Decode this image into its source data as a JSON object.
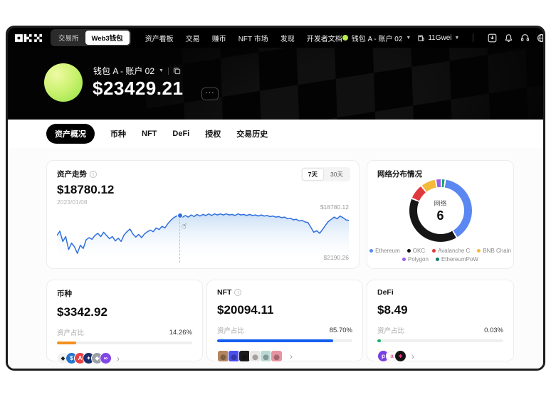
{
  "navbar": {
    "logo": "OKX",
    "segmented": {
      "exchange": "交易所",
      "web3": "Web3钱包"
    },
    "items": [
      "资产看板",
      "交易",
      "赚币",
      "NFT 市场",
      "发现",
      "开发者文档"
    ],
    "account": "钱包 A - 账户 02",
    "gas": "11Gwei"
  },
  "header": {
    "wallet_name": "钱包 A - 账户 02",
    "balance": "$23429.21",
    "more_label": "···"
  },
  "tabs": [
    {
      "label": "资产概况",
      "active": true
    },
    {
      "label": "币种",
      "active": false
    },
    {
      "label": "NFT",
      "active": false
    },
    {
      "label": "DeFi",
      "active": false
    },
    {
      "label": "授权",
      "active": false
    },
    {
      "label": "交易历史",
      "active": false
    }
  ],
  "asset_trend": {
    "title": "资产走势",
    "value": "$18780.12",
    "date": "2023/01/08",
    "range_7d": "7天",
    "range_30d": "30天",
    "label_high": "$18780.12",
    "label_low": "$2190.26"
  },
  "network_distribution": {
    "title": "网络分布情况",
    "center_label": "网络",
    "center_value": "6",
    "legend": [
      {
        "name": "Ethereum",
        "color": "#5b87f2"
      },
      {
        "name": "OKC",
        "color": "#121212"
      },
      {
        "name": "Avalanche C",
        "color": "#e0393e"
      },
      {
        "name": "BNB Chain",
        "color": "#f3ba3a"
      },
      {
        "name": "Polygon",
        "color": "#9b5cf0"
      },
      {
        "name": "EthereumPoW",
        "color": "#0e7f6d"
      }
    ]
  },
  "cards": [
    {
      "title": "币种",
      "value": "$3342.92",
      "ratio_label": "资产占比",
      "ratio": "14.26%",
      "bar_color": "#f3901d",
      "bar_width": "14.26%",
      "icons": [
        {
          "name": "eth",
          "bg": "#f1f1f1",
          "fg": "#222",
          "glyph": "◆"
        },
        {
          "name": "usdc",
          "bg": "#2775ca",
          "fg": "#fff",
          "glyph": "$"
        },
        {
          "name": "avax",
          "bg": "#e84142",
          "fg": "#fff",
          "glyph": "A"
        },
        {
          "name": "okt",
          "bg": "#1b2f6e",
          "fg": "#fff",
          "glyph": "✦"
        },
        {
          "name": "ethw",
          "bg": "#9aa0a6",
          "fg": "#fff",
          "glyph": "◆"
        },
        {
          "name": "matic",
          "bg": "#8247e5",
          "fg": "#fff",
          "glyph": "∞"
        }
      ]
    },
    {
      "title": "NFT",
      "value": "$20094.11",
      "ratio_label": "资产占比",
      "ratio": "85.70%",
      "bar_color": "#155eef",
      "bar_width": "85.70%",
      "icons": [
        {
          "name": "nft-1",
          "shape": "square",
          "bg": "#b3855f"
        },
        {
          "name": "nft-2",
          "shape": "square",
          "bg": "#4b4ded"
        },
        {
          "name": "nft-3",
          "shape": "square",
          "bg": "#1b1b1e"
        },
        {
          "name": "nft-4",
          "shape": "square",
          "bg": "#e9e7e4"
        },
        {
          "name": "nft-5",
          "shape": "square",
          "bg": "#bcd8d4"
        },
        {
          "name": "nft-6",
          "shape": "square",
          "bg": "#e794a0"
        }
      ]
    },
    {
      "title": "DeFi",
      "value": "$8.49",
      "ratio_label": "资产占比",
      "ratio": "0.03%",
      "bar_color": "#16b26d",
      "bar_width": "0.03%",
      "icons": [
        {
          "name": "defi-1",
          "bg": "#7b3fe4",
          "fg": "#fff",
          "glyph": "p"
        },
        {
          "name": "defi-2",
          "bg": "#ffffff",
          "fg": "#e85ba0",
          "glyph": "a",
          "border": "#e8e8e8"
        },
        {
          "name": "defi-3",
          "bg": "#141414",
          "fg": "#ff3d9a",
          "glyph": "∗"
        }
      ]
    }
  ],
  "chart_data": [
    {
      "type": "line",
      "title": "资产走势",
      "current_value": 18780.12,
      "current_date": "2023/01/08",
      "y_label_top": "$18780.12",
      "y_label_bottom": "$2190.26",
      "range_options": [
        "7天",
        "30天"
      ],
      "selected_range": "7天",
      "line_color": "#2f6fde",
      "hover": {
        "x": 42,
        "y": 12
      },
      "series": [
        {
          "name": "资产走势",
          "points_norm": [
            [
              0,
              50
            ],
            [
              1,
              42
            ],
            [
              2,
              61
            ],
            [
              3,
              52
            ],
            [
              4,
              76
            ],
            [
              5,
              64
            ],
            [
              6,
              71
            ],
            [
              7,
              83
            ],
            [
              8,
              68
            ],
            [
              9,
              74
            ],
            [
              10,
              58
            ],
            [
              11,
              54
            ],
            [
              12,
              57
            ],
            [
              13,
              50
            ],
            [
              14,
              46
            ],
            [
              15,
              52
            ],
            [
              16,
              44
            ],
            [
              17,
              50
            ],
            [
              18,
              56
            ],
            [
              19,
              52
            ],
            [
              20,
              60
            ],
            [
              21,
              55
            ],
            [
              22,
              61
            ],
            [
              23,
              49
            ],
            [
              24,
              43
            ],
            [
              25,
              38
            ],
            [
              26,
              47
            ],
            [
              27,
              53
            ],
            [
              28,
              48
            ],
            [
              29,
              54
            ],
            [
              30,
              47
            ],
            [
              31,
              43
            ],
            [
              32,
              40
            ],
            [
              33,
              43
            ],
            [
              34,
              36
            ],
            [
              35,
              39
            ],
            [
              36,
              33
            ],
            [
              37,
              36
            ],
            [
              38,
              28
            ],
            [
              39,
              22
            ],
            [
              40,
              17
            ],
            [
              41,
              14
            ],
            [
              42,
              12
            ],
            [
              43,
              16
            ],
            [
              44,
              13
            ],
            [
              45,
              16
            ],
            [
              46,
              12
            ],
            [
              47,
              15
            ],
            [
              48,
              11
            ],
            [
              49,
              14
            ],
            [
              50,
              11
            ],
            [
              51,
              13
            ],
            [
              52,
              10
            ],
            [
              53,
              13
            ],
            [
              54,
              10
            ],
            [
              55,
              12
            ],
            [
              56,
              10
            ],
            [
              57,
              12
            ],
            [
              58,
              10
            ],
            [
              59,
              12
            ],
            [
              60,
              11
            ],
            [
              61,
              13
            ],
            [
              62,
              10
            ],
            [
              63,
              12
            ],
            [
              64,
              11
            ],
            [
              65,
              13
            ],
            [
              66,
              11
            ],
            [
              67,
              13
            ],
            [
              68,
              12
            ],
            [
              69,
              14
            ],
            [
              70,
              12
            ],
            [
              71,
              14
            ],
            [
              72,
              13
            ],
            [
              73,
              15
            ],
            [
              74,
              14
            ],
            [
              75,
              16
            ],
            [
              76,
              15
            ],
            [
              77,
              17
            ],
            [
              78,
              16
            ],
            [
              79,
              19
            ],
            [
              80,
              18
            ],
            [
              81,
              21
            ],
            [
              82,
              20
            ],
            [
              83,
              23
            ],
            [
              84,
              22
            ],
            [
              85,
              25
            ],
            [
              86,
              26
            ],
            [
              87,
              35
            ],
            [
              88,
              44
            ],
            [
              89,
              41
            ],
            [
              90,
              46
            ],
            [
              91,
              39
            ],
            [
              92,
              31
            ],
            [
              93,
              24
            ],
            [
              94,
              20
            ],
            [
              95,
              16
            ],
            [
              96,
              19
            ],
            [
              97,
              14
            ],
            [
              98,
              17
            ],
            [
              99,
              21
            ],
            [
              100,
              22
            ]
          ]
        }
      ]
    },
    {
      "type": "pie",
      "title": "网络分布情况",
      "center": {
        "label": "网络",
        "value": "6"
      },
      "segments": [
        {
          "name": "EthereumPoW",
          "pct": 2,
          "color": "#17a273"
        },
        {
          "name": "Ethereum",
          "pct": 39,
          "color": "#5b87f2"
        },
        {
          "name": "OKC",
          "pct": 40,
          "color": "#161616"
        },
        {
          "name": "Avalanche C",
          "pct": 8,
          "color": "#e0393e"
        },
        {
          "name": "BNB Chain",
          "pct": 8,
          "color": "#f3ba3a"
        },
        {
          "name": "Polygon",
          "pct": 3,
          "color": "#9b5cf0"
        }
      ]
    }
  ]
}
